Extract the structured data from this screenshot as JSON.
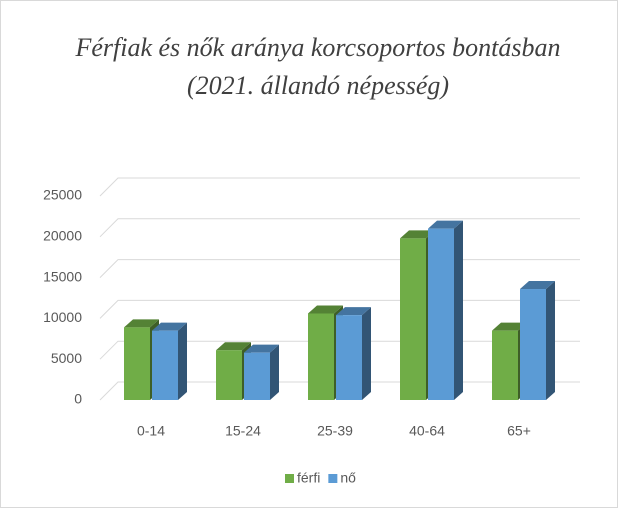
{
  "chart_data": {
    "type": "bar3d",
    "title": [
      "Férfiak és nők aránya korcsoportos bontásban",
      "(2021. állandó népesség)"
    ],
    "categories": [
      "0-14",
      "15-24",
      "25-39",
      "40-64",
      "65+"
    ],
    "series": [
      {
        "name": "férfi",
        "color": "#70ad47",
        "values": [
          8900,
          6100,
          10600,
          19800,
          8500
        ]
      },
      {
        "name": "nő",
        "color": "#5b9bd5",
        "values": [
          8500,
          5800,
          10400,
          21000,
          13600
        ]
      }
    ],
    "ylim": [
      0,
      25000
    ],
    "yticks": [
      0,
      5000,
      10000,
      15000,
      20000,
      25000
    ],
    "grid": true,
    "legend": "bottom"
  }
}
